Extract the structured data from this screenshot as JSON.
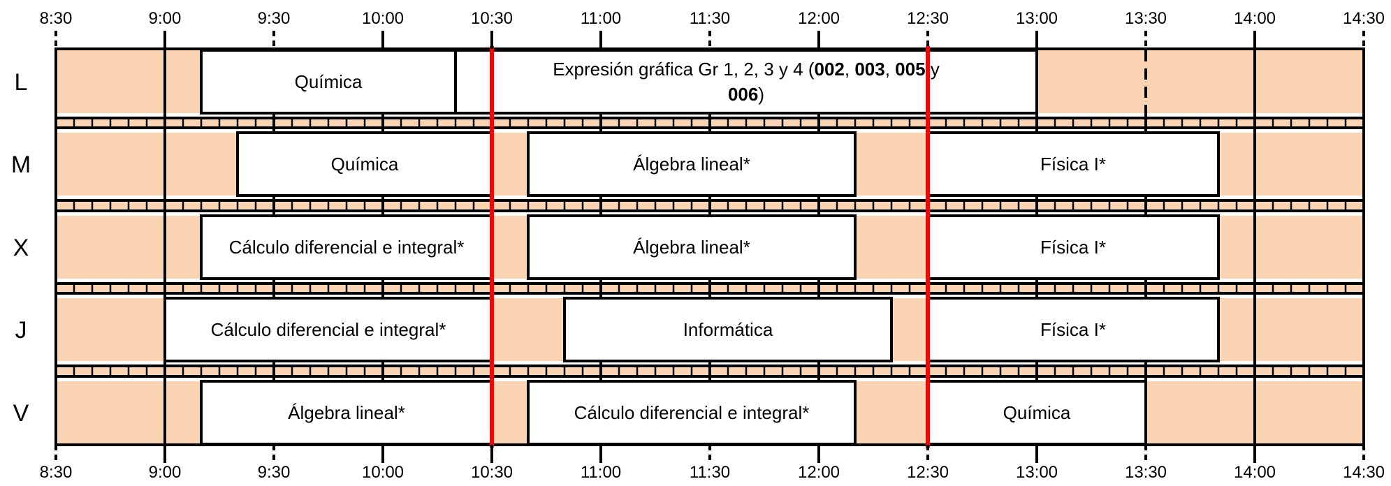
{
  "colors": {
    "background": "#ffffff",
    "free_slot": "#fad4b3",
    "grid_line": "#000000",
    "divider": "#ff0000",
    "text": "#000000"
  },
  "time_axis": {
    "start": "8:30",
    "end": "14:30",
    "labels": [
      "8:30",
      "9:00",
      "9:30",
      "10:00",
      "10:30",
      "11:00",
      "11:30",
      "12:00",
      "12:30",
      "13:00",
      "13:30",
      "14:00",
      "14:30"
    ],
    "dashed_ticks": [
      "8:30",
      "9:30",
      "11:30",
      "12:30",
      "13:30",
      "14:30"
    ]
  },
  "red_dividers": [
    "10:30",
    "12:30"
  ],
  "days": [
    {
      "label": "L",
      "courses": [
        {
          "start": "9:10",
          "end": "10:20",
          "title": "Química"
        },
        {
          "start": "10:20",
          "end": "13:00",
          "lines": [
            [
              {
                "t": "Expresión gráfica Gr 1, 2, 3 y 4 ("
              },
              {
                "t": "002",
                "b": true
              },
              {
                "t": ", "
              },
              {
                "t": "003",
                "b": true
              },
              {
                "t": ", "
              },
              {
                "t": "005",
                "b": true
              },
              {
                "t": " y"
              }
            ],
            [
              {
                "t": "006",
                "b": true
              },
              {
                "t": ")"
              }
            ]
          ]
        }
      ],
      "separators": [
        "13:30"
      ],
      "dashed_separators": [
        "13:30"
      ]
    },
    {
      "label": "M",
      "courses": [
        {
          "start": "9:20",
          "end": "10:30",
          "title": "Química"
        },
        {
          "start": "10:40",
          "end": "12:10",
          "title": "Álgebra lineal*"
        },
        {
          "start": "12:30",
          "end": "13:50",
          "title": "Física I*"
        }
      ]
    },
    {
      "label": "X",
      "courses": [
        {
          "start": "9:10",
          "end": "10:30",
          "title": "Cálculo diferencial e integral*"
        },
        {
          "start": "10:40",
          "end": "12:10",
          "title": "Álgebra lineal*"
        },
        {
          "start": "12:30",
          "end": "13:50",
          "title": "Física I*"
        }
      ]
    },
    {
      "label": "J",
      "courses": [
        {
          "start": "9:00",
          "end": "10:30",
          "title": "Cálculo diferencial e integral*"
        },
        {
          "start": "10:50",
          "end": "12:20",
          "title": "Informática"
        },
        {
          "start": "12:30",
          "end": "13:50",
          "title": "Física I*"
        }
      ]
    },
    {
      "label": "V",
      "courses": [
        {
          "start": "9:10",
          "end": "10:30",
          "title": "Álgebra lineal*"
        },
        {
          "start": "10:40",
          "end": "12:10",
          "title": "Cálculo diferencial e integral*"
        },
        {
          "start": "12:30",
          "end": "13:30",
          "title": "Química"
        }
      ]
    }
  ]
}
